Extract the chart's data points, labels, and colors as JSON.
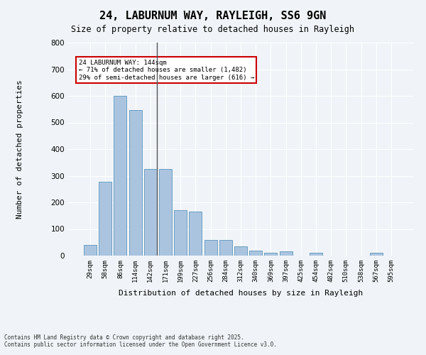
{
  "title1": "24, LABURNUM WAY, RAYLEIGH, SS6 9GN",
  "title2": "Size of property relative to detached houses in Rayleigh",
  "xlabel": "Distribution of detached houses by size in Rayleigh",
  "ylabel": "Number of detached properties",
  "categories": [
    "29sqm",
    "58sqm",
    "86sqm",
    "114sqm",
    "142sqm",
    "171sqm",
    "199sqm",
    "227sqm",
    "256sqm",
    "284sqm",
    "312sqm",
    "340sqm",
    "369sqm",
    "397sqm",
    "425sqm",
    "454sqm",
    "482sqm",
    "510sqm",
    "538sqm",
    "567sqm",
    "595sqm"
  ],
  "values": [
    40,
    278,
    600,
    548,
    325,
    325,
    170,
    165,
    60,
    60,
    35,
    20,
    10,
    15,
    0,
    10,
    0,
    0,
    0,
    10,
    0
  ],
  "bar_color": "#aac4e0",
  "bar_edge_color": "#6a9fc0",
  "highlight_index": 4,
  "highlight_line_color": "#555555",
  "annotation_title": "24 LABURNUM WAY: 144sqm",
  "annotation_line1": "← 71% of detached houses are smaller (1,482)",
  "annotation_line2": "29% of semi-detached houses are larger (616) →",
  "annotation_box_color": "#ffffff",
  "annotation_box_edge_color": "#cc0000",
  "ylim": [
    0,
    800
  ],
  "yticks": [
    0,
    100,
    200,
    300,
    400,
    500,
    600,
    700,
    800
  ],
  "background_color": "#f0f4f8",
  "grid_color": "#ffffff",
  "footer1": "Contains HM Land Registry data © Crown copyright and database right 2025.",
  "footer2": "Contains public sector information licensed under the Open Government Licence v3.0."
}
